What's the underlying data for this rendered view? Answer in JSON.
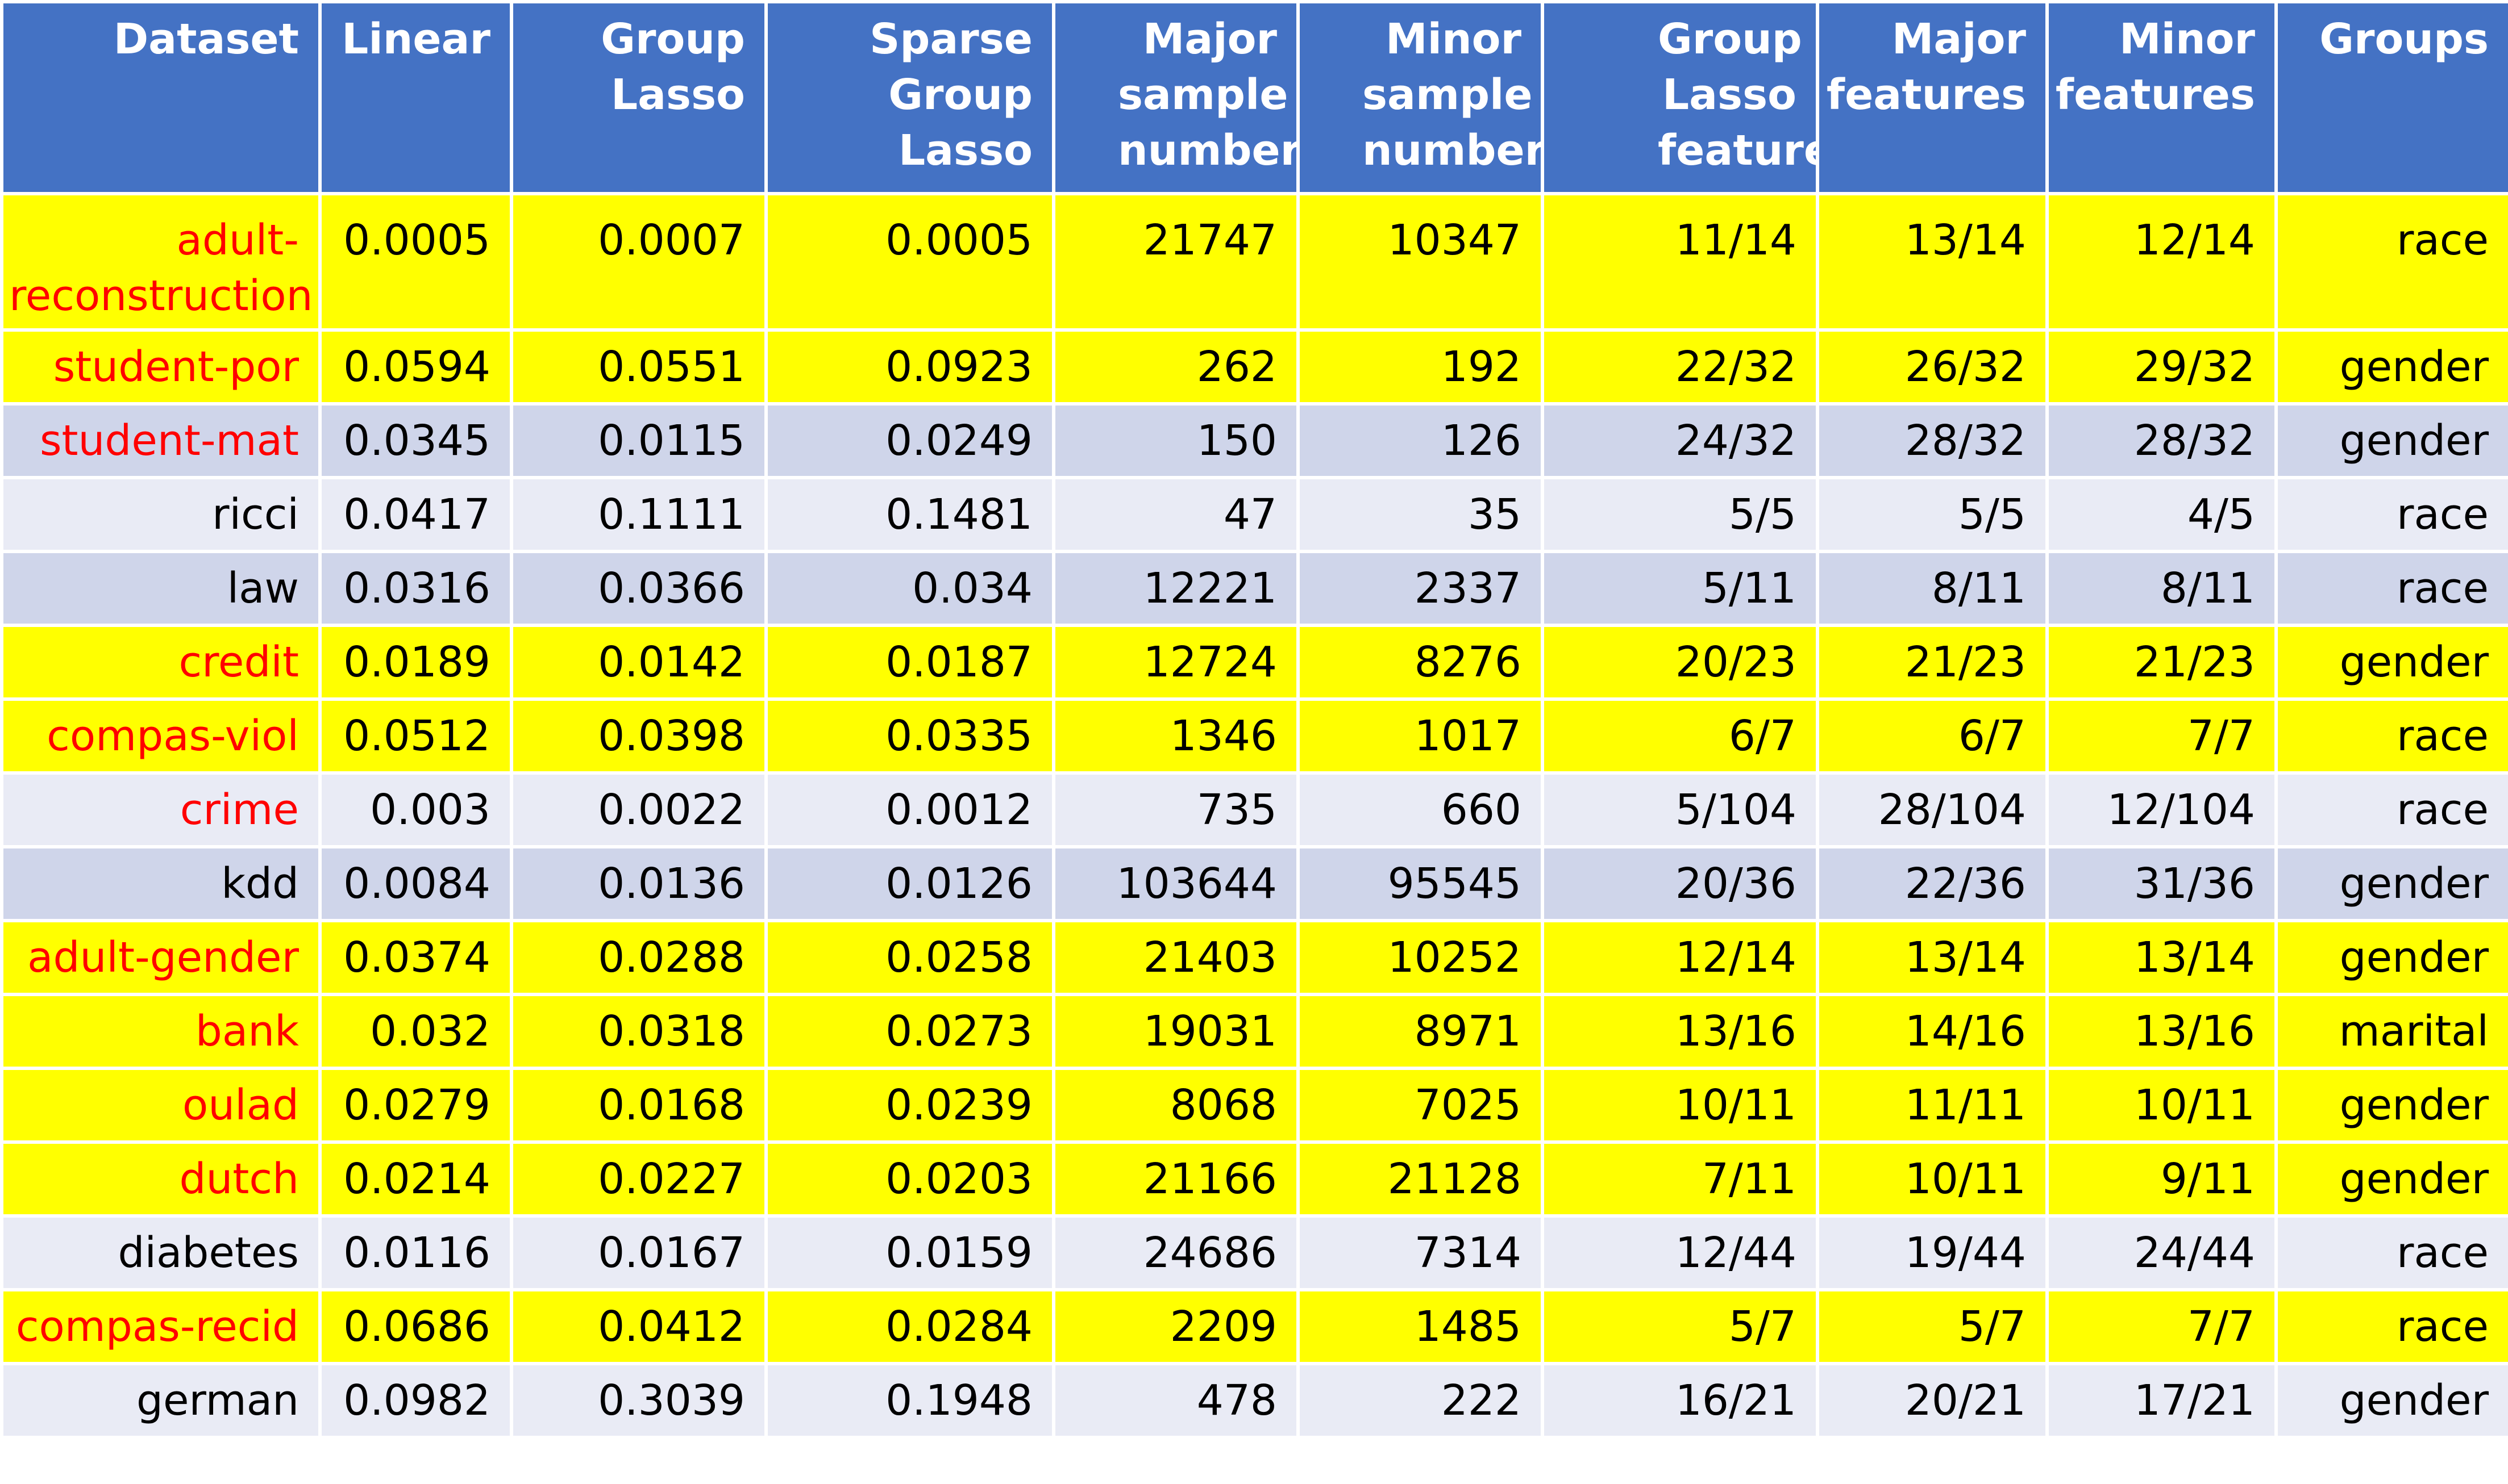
{
  "table": {
    "headers": [
      "Dataset",
      "Linear",
      "Group Lasso",
      "Sparse Group Lasso",
      "Major sample numbers",
      "Minor sample numbers",
      "Group Lasso features",
      "Major features",
      "Minor features",
      "Groups"
    ],
    "colors": {
      "header_bg": "#4472c4",
      "highlight_row_bg": "#ffff00",
      "band_dark_bg": "#cfd5ea",
      "band_light_bg": "#e9ebf5",
      "highlight_text": "#ff0000"
    },
    "rows": [
      {
        "dataset": "adult-reconstruction",
        "linear": "0.0005",
        "group_lasso": "0.0007",
        "sparse_group_lasso": "0.0005",
        "major_samples": "21747",
        "minor_samples": "10347",
        "gl_features": "11/14",
        "major_features": "13/14",
        "minor_features": "12/14",
        "groups": "race",
        "highlighted": true,
        "red_name": true
      },
      {
        "dataset": "student-por",
        "linear": "0.0594",
        "group_lasso": "0.0551",
        "sparse_group_lasso": "0.0923",
        "major_samples": "262",
        "minor_samples": "192",
        "gl_features": "22/32",
        "major_features": "26/32",
        "minor_features": "29/32",
        "groups": "gender",
        "highlighted": true,
        "red_name": true
      },
      {
        "dataset": "student-mat",
        "linear": "0.0345",
        "group_lasso": "0.0115",
        "sparse_group_lasso": "0.0249",
        "major_samples": "150",
        "minor_samples": "126",
        "gl_features": "24/32",
        "major_features": "28/32",
        "minor_features": "28/32",
        "groups": "gender",
        "highlighted": false,
        "red_name": true
      },
      {
        "dataset": "ricci",
        "linear": "0.0417",
        "group_lasso": "0.1111",
        "sparse_group_lasso": "0.1481",
        "major_samples": "47",
        "minor_samples": "35",
        "gl_features": "5/5",
        "major_features": "5/5",
        "minor_features": "4/5",
        "groups": "race",
        "highlighted": false,
        "red_name": false
      },
      {
        "dataset": "law",
        "linear": "0.0316",
        "group_lasso": "0.0366",
        "sparse_group_lasso": "0.034",
        "major_samples": "12221",
        "minor_samples": "2337",
        "gl_features": "5/11",
        "major_features": "8/11",
        "minor_features": "8/11",
        "groups": "race",
        "highlighted": false,
        "red_name": false
      },
      {
        "dataset": "credit",
        "linear": "0.0189",
        "group_lasso": "0.0142",
        "sparse_group_lasso": "0.0187",
        "major_samples": "12724",
        "minor_samples": "8276",
        "gl_features": "20/23",
        "major_features": "21/23",
        "minor_features": "21/23",
        "groups": "gender",
        "highlighted": true,
        "red_name": true
      },
      {
        "dataset": "compas-viol",
        "linear": "0.0512",
        "group_lasso": "0.0398",
        "sparse_group_lasso": "0.0335",
        "major_samples": "1346",
        "minor_samples": "1017",
        "gl_features": "6/7",
        "major_features": "6/7",
        "minor_features": "7/7",
        "groups": "race",
        "highlighted": true,
        "red_name": true
      },
      {
        "dataset": "crime",
        "linear": "0.003",
        "group_lasso": "0.0022",
        "sparse_group_lasso": "0.0012",
        "major_samples": "735",
        "minor_samples": "660",
        "gl_features": "5/104",
        "major_features": "28/104",
        "minor_features": "12/104",
        "groups": "race",
        "highlighted": false,
        "red_name": true
      },
      {
        "dataset": "kdd",
        "linear": "0.0084",
        "group_lasso": "0.0136",
        "sparse_group_lasso": "0.0126",
        "major_samples": "103644",
        "minor_samples": "95545",
        "gl_features": "20/36",
        "major_features": "22/36",
        "minor_features": "31/36",
        "groups": "gender",
        "highlighted": false,
        "red_name": false
      },
      {
        "dataset": "adult-gender",
        "linear": "0.0374",
        "group_lasso": "0.0288",
        "sparse_group_lasso": "0.0258",
        "major_samples": "21403",
        "minor_samples": "10252",
        "gl_features": "12/14",
        "major_features": "13/14",
        "minor_features": "13/14",
        "groups": "gender",
        "highlighted": true,
        "red_name": true
      },
      {
        "dataset": "bank",
        "linear": "0.032",
        "group_lasso": "0.0318",
        "sparse_group_lasso": "0.0273",
        "major_samples": "19031",
        "minor_samples": "8971",
        "gl_features": "13/16",
        "major_features": "14/16",
        "minor_features": "13/16",
        "groups": "marital",
        "highlighted": true,
        "red_name": true
      },
      {
        "dataset": "oulad",
        "linear": "0.0279",
        "group_lasso": "0.0168",
        "sparse_group_lasso": "0.0239",
        "major_samples": "8068",
        "minor_samples": "7025",
        "gl_features": "10/11",
        "major_features": "11/11",
        "minor_features": "10/11",
        "groups": "gender",
        "highlighted": true,
        "red_name": true
      },
      {
        "dataset": "dutch",
        "linear": "0.0214",
        "group_lasso": "0.0227",
        "sparse_group_lasso": "0.0203",
        "major_samples": "21166",
        "minor_samples": "21128",
        "gl_features": "7/11",
        "major_features": "10/11",
        "minor_features": "9/11",
        "groups": "gender",
        "highlighted": true,
        "red_name": true
      },
      {
        "dataset": "diabetes",
        "linear": "0.0116",
        "group_lasso": "0.0167",
        "sparse_group_lasso": "0.0159",
        "major_samples": "24686",
        "minor_samples": "7314",
        "gl_features": "12/44",
        "major_features": "19/44",
        "minor_features": "24/44",
        "groups": "race",
        "highlighted": false,
        "red_name": false
      },
      {
        "dataset": "compas-recid",
        "linear": "0.0686",
        "group_lasso": "0.0412",
        "sparse_group_lasso": "0.0284",
        "major_samples": "2209",
        "minor_samples": "1485",
        "gl_features": "5/7",
        "major_features": "5/7",
        "minor_features": "7/7",
        "groups": "race",
        "highlighted": true,
        "red_name": true
      },
      {
        "dataset": "german",
        "linear": "0.0982",
        "group_lasso": "0.3039",
        "sparse_group_lasso": "0.1948",
        "major_samples": "478",
        "minor_samples": "222",
        "gl_features": "16/21",
        "major_features": "20/21",
        "minor_features": "17/21",
        "groups": "gender",
        "highlighted": false,
        "red_name": false
      }
    ]
  }
}
